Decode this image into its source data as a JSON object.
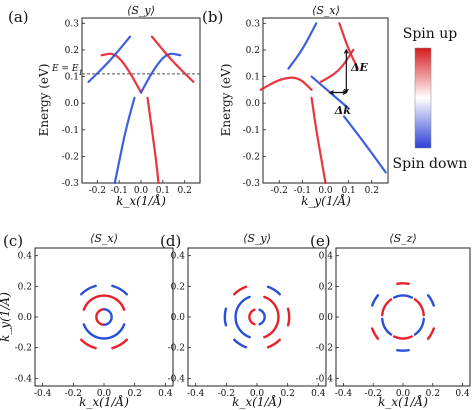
{
  "chart_data": [
    {
      "panel": "(a)",
      "type": "heatmap",
      "title": "⟨S_y⟩",
      "xlabel": "k_x(1/Å)",
      "ylabel": "Energy (eV)",
      "xlim": [
        -0.27,
        0.27
      ],
      "ylim": [
        -0.3,
        0.32
      ],
      "xticks": [
        -0.2,
        -0.1,
        0.0,
        0.1,
        0.2
      ],
      "xtick_labels": [
        "-0.2",
        "-0.1",
        "0.0",
        "0.1",
        "0.2"
      ],
      "yticks": [
        -0.3,
        -0.2,
        -0.1,
        0.0,
        0.1,
        0.2,
        0.3
      ],
      "ytick_labels": [
        "-0.3",
        "-0.2",
        "-0.1",
        "0.0",
        "0.1",
        "0.2",
        "0.3"
      ],
      "reference_line": {
        "y": 0.11,
        "label": "E = E",
        "label_sub": "1"
      },
      "bands": [
        {
          "name": "left inner upper",
          "color": "#e8202a",
          "points": [
            [
              -0.18,
              0.18
            ],
            [
              -0.12,
              0.19
            ],
            [
              -0.06,
              0.13
            ],
            [
              0.0,
              0.04
            ]
          ]
        },
        {
          "name": "right inner upper",
          "color": "#2a4fd8",
          "points": [
            [
              0.0,
              0.04
            ],
            [
              0.06,
              0.13
            ],
            [
              0.12,
              0.19
            ],
            [
              0.18,
              0.18
            ]
          ]
        },
        {
          "name": "left outer",
          "color": "#2a4fd8",
          "points": [
            [
              -0.05,
              0.25
            ],
            [
              -0.14,
              0.16
            ],
            [
              -0.24,
              0.08
            ]
          ]
        },
        {
          "name": "right outer",
          "color": "#e8202a",
          "points": [
            [
              0.05,
              0.25
            ],
            [
              0.14,
              0.16
            ],
            [
              0.24,
              0.08
            ]
          ]
        },
        {
          "name": "left inner lower",
          "color": "#2a4fd8",
          "points": [
            [
              -0.03,
              0.02
            ],
            [
              -0.07,
              -0.1
            ],
            [
              -0.1,
              -0.22
            ],
            [
              -0.12,
              -0.3
            ]
          ]
        },
        {
          "name": "right inner lower",
          "color": "#e8202a",
          "points": [
            [
              0.03,
              0.02
            ],
            [
              0.05,
              -0.1
            ],
            [
              0.07,
              -0.22
            ],
            [
              0.08,
              -0.3
            ]
          ]
        }
      ]
    },
    {
      "panel": "(b)",
      "type": "heatmap",
      "title": "⟨S_x⟩",
      "xlabel": "k_y(1/Å)",
      "ylabel": "Energy (eV)",
      "xlim": [
        -0.27,
        0.27
      ],
      "ylim": [
        -0.3,
        0.32
      ],
      "xticks": [
        -0.2,
        -0.1,
        0.0,
        0.1,
        0.2
      ],
      "xtick_labels": [
        "-0.2",
        "-0.1",
        "0.0",
        "0.1",
        "0.2"
      ],
      "yticks": [
        -0.3,
        -0.2,
        -0.1,
        0.0,
        0.1,
        0.2,
        0.3
      ],
      "ytick_labels": [
        "-0.3",
        "-0.2",
        "-0.1",
        "0.0",
        "0.1",
        "0.2",
        "0.3"
      ],
      "annotations": [
        {
          "text": "ΔE",
          "x": 0.11,
          "y": 0.12,
          "arrow": [
            [
              0.09,
              0.04
            ],
            [
              0.09,
              0.2
            ]
          ]
        },
        {
          "text": "Δk",
          "x": 0.04,
          "y": -0.04,
          "arrow": [
            [
              0.02,
              0.04
            ],
            [
              0.09,
              0.04
            ]
          ]
        }
      ],
      "bands": [
        {
          "name": "left upper",
          "color": "#e8202a",
          "points": [
            [
              -0.28,
              0.05
            ],
            [
              -0.2,
              0.09
            ],
            [
              -0.12,
              0.1
            ],
            [
              -0.06,
              0.05
            ]
          ]
        },
        {
          "name": "left outer",
          "color": "#2a4fd8",
          "points": [
            [
              -0.04,
              0.3
            ],
            [
              -0.1,
              0.2
            ],
            [
              -0.16,
              0.13
            ]
          ]
        },
        {
          "name": "right outer",
          "color": "#e8202a",
          "points": [
            [
              0.06,
              0.3
            ],
            [
              0.1,
              0.2
            ],
            [
              0.14,
              0.13
            ]
          ]
        },
        {
          "name": "crossing blue",
          "color": "#2a4fd8",
          "points": [
            [
              -0.06,
              0.1
            ],
            [
              0.02,
              0.04
            ],
            [
              0.1,
              -0.02
            ]
          ]
        },
        {
          "name": "crossing red",
          "color": "#e8202a",
          "points": [
            [
              -0.02,
              0.08
            ],
            [
              0.06,
              0.12
            ],
            [
              0.12,
              0.2
            ]
          ]
        },
        {
          "name": "lower left",
          "color": "#e8202a",
          "points": [
            [
              -0.06,
              0.02
            ],
            [
              -0.04,
              -0.1
            ],
            [
              -0.02,
              -0.2
            ],
            [
              0.0,
              -0.3
            ]
          ]
        },
        {
          "name": "lower right",
          "color": "#2a4fd8",
          "points": [
            [
              0.08,
              -0.05
            ],
            [
              0.16,
              -0.14
            ],
            [
              0.26,
              -0.26
            ]
          ]
        }
      ]
    },
    {
      "panel": "(c)",
      "type": "scatter",
      "title": "⟨S_x⟩",
      "xlabel": "k_x(1/Å)",
      "ylabel": "k_y(1/Å)",
      "xlim": [
        -0.45,
        0.45
      ],
      "ylim": [
        -0.45,
        0.45
      ],
      "xticks": [
        -0.4,
        -0.2,
        0.0,
        0.2,
        0.4
      ],
      "xtick_labels": [
        "-0.4",
        "-0.2",
        "0.0",
        "0.2",
        "0.4"
      ],
      "yticks": [
        -0.4,
        -0.2,
        0.0,
        0.2,
        0.4
      ],
      "ytick_labels": [
        "-0.4",
        "-0.2",
        "0.0",
        "0.2",
        "0.4"
      ],
      "arcs": [
        {
          "color": "#e8202a",
          "r": 0.14,
          "a0": 20,
          "a1": 160
        },
        {
          "color": "#2a4fd8",
          "r": 0.14,
          "a0": 200,
          "a1": 340
        },
        {
          "color": "#e8202a",
          "r": 0.05,
          "a0": 90,
          "a1": 270
        },
        {
          "color": "#2a4fd8",
          "r": 0.05,
          "a0": -90,
          "a1": 90
        },
        {
          "color": "#e8202a",
          "r": 0.21,
          "a0": 225,
          "a1": 255
        },
        {
          "color": "#e8202a",
          "r": 0.21,
          "a0": 285,
          "a1": 315
        },
        {
          "color": "#2a4fd8",
          "r": 0.21,
          "a0": 45,
          "a1": 75
        },
        {
          "color": "#2a4fd8",
          "r": 0.21,
          "a0": 105,
          "a1": 135
        }
      ]
    },
    {
      "panel": "(d)",
      "type": "scatter",
      "title": "⟨S_y⟩",
      "xlabel": "k_x(1/Å)",
      "ylabel": "",
      "xlim": [
        -0.45,
        0.45
      ],
      "ylim": [
        -0.45,
        0.45
      ],
      "xticks": [
        -0.4,
        -0.2,
        0.0,
        0.2,
        0.4
      ],
      "xtick_labels": [
        "-0.4",
        "-0.2",
        "0.0",
        "0.2",
        "0.4"
      ],
      "yticks": [
        -0.4,
        -0.2,
        0.0,
        0.2,
        0.4
      ],
      "ytick_labels": [
        "-0.4",
        "-0.2",
        "0.0",
        "0.2",
        "0.4"
      ],
      "arcs": [
        {
          "color": "#2a4fd8",
          "r": 0.14,
          "a0": 110,
          "a1": 250
        },
        {
          "color": "#e8202a",
          "r": 0.14,
          "a0": -70,
          "a1": 70
        },
        {
          "color": "#2a4fd8",
          "r": 0.05,
          "a0": -70,
          "a1": 70
        },
        {
          "color": "#e8202a",
          "r": 0.05,
          "a0": 110,
          "a1": 250
        },
        {
          "color": "#2a4fd8",
          "r": 0.21,
          "a0": 165,
          "a1": 195
        },
        {
          "color": "#e8202a",
          "r": 0.21,
          "a0": -15,
          "a1": 15
        },
        {
          "color": "#2a4fd8",
          "r": 0.21,
          "a0": 225,
          "a1": 250
        },
        {
          "color": "#e8202a",
          "r": 0.21,
          "a0": 290,
          "a1": 315
        },
        {
          "color": "#2a4fd8",
          "r": 0.21,
          "a0": 45,
          "a1": 70
        },
        {
          "color": "#e8202a",
          "r": 0.21,
          "a0": 110,
          "a1": 135
        }
      ]
    },
    {
      "panel": "(e)",
      "type": "scatter",
      "title": "⟨S_z⟩",
      "xlabel": "k_x(1/Å)",
      "ylabel": "",
      "xlim": [
        -0.45,
        0.45
      ],
      "ylim": [
        -0.45,
        0.45
      ],
      "xticks": [
        -0.4,
        -0.2,
        0.0,
        0.2,
        0.4
      ],
      "xtick_labels": [
        "-0.4",
        "-0.2",
        "0.0",
        "0.2",
        "0.4"
      ],
      "yticks": [
        -0.4,
        -0.2,
        0.0,
        0.2,
        0.4
      ],
      "ytick_labels": [
        "-0.4",
        "-0.2",
        "0.0",
        "0.2",
        "0.4"
      ],
      "arcs": [
        {
          "color": "#e8202a",
          "r": 0.14,
          "a0": 5,
          "a1": 55
        },
        {
          "color": "#2a4fd8",
          "r": 0.14,
          "a0": 65,
          "a1": 115
        },
        {
          "color": "#e8202a",
          "r": 0.14,
          "a0": 125,
          "a1": 175
        },
        {
          "color": "#2a4fd8",
          "r": 0.14,
          "a0": 185,
          "a1": 235
        },
        {
          "color": "#e8202a",
          "r": 0.14,
          "a0": 245,
          "a1": 295
        },
        {
          "color": "#2a4fd8",
          "r": 0.14,
          "a0": 305,
          "a1": 355
        },
        {
          "color": "#2a4fd8",
          "r": 0.22,
          "a0": 20,
          "a1": 40
        },
        {
          "color": "#e8202a",
          "r": 0.22,
          "a0": 80,
          "a1": 100
        },
        {
          "color": "#2a4fd8",
          "r": 0.22,
          "a0": 140,
          "a1": 160
        },
        {
          "color": "#e8202a",
          "r": 0.22,
          "a0": 200,
          "a1": 220
        },
        {
          "color": "#2a4fd8",
          "r": 0.22,
          "a0": 260,
          "a1": 280
        },
        {
          "color": "#e8202a",
          "r": 0.22,
          "a0": 320,
          "a1": 340
        }
      ]
    }
  ],
  "colorbar": {
    "top_label": "Spin up",
    "bottom_label": "Spin down",
    "colors": {
      "up": "#d7191c",
      "mid": "#ffffff",
      "down": "#2b3fd6"
    }
  }
}
